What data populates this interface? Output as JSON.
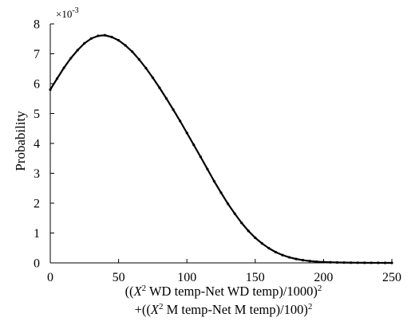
{
  "chart_data": {
    "type": "line",
    "ylabel": "Probability",
    "y_multiplier": {
      "base": "×10",
      "exponent": "-3"
    },
    "xlabel": {
      "line1": {
        "prefix": "((",
        "var": "X",
        "var_sup": "2",
        "middle": " WD temp-Net WD temp)/1000)",
        "end_sup": "2"
      },
      "line2": {
        "prefix": "+((",
        "var": "X",
        "var_sup": "2",
        "middle": " M temp-Net M temp)/100)",
        "end_sup": "2"
      }
    },
    "xlim": [
      0,
      250
    ],
    "ylim": [
      0,
      8
    ],
    "x_ticks": [
      "0",
      "50",
      "100",
      "150",
      "200",
      "250"
    ],
    "y_ticks": [
      "0",
      "1",
      "2",
      "3",
      "4",
      "5",
      "6",
      "7",
      "8"
    ],
    "grid": false,
    "series": [
      {
        "color": "#000000",
        "marker": "dot",
        "x": [
          0,
          5,
          10,
          15,
          20,
          25,
          30,
          35,
          40,
          45,
          50,
          55,
          60,
          65,
          70,
          75,
          80,
          85,
          90,
          95,
          100,
          105,
          110,
          115,
          120,
          125,
          130,
          135,
          140,
          145,
          150,
          155,
          160,
          165,
          170,
          175,
          180,
          185,
          190,
          195,
          200,
          205,
          210,
          215,
          220,
          225,
          230,
          235,
          240,
          245,
          250
        ],
        "y": [
          5.8,
          6.17,
          6.53,
          6.85,
          7.12,
          7.35,
          7.51,
          7.6,
          7.62,
          7.56,
          7.45,
          7.28,
          7.07,
          6.81,
          6.52,
          6.2,
          5.86,
          5.5,
          5.13,
          4.75,
          4.35,
          3.95,
          3.55,
          3.14,
          2.73,
          2.35,
          1.98,
          1.65,
          1.34,
          1.07,
          0.84,
          0.65,
          0.49,
          0.36,
          0.26,
          0.185,
          0.13,
          0.09,
          0.06,
          0.04,
          0.028,
          0.02,
          0.014,
          0.01,
          0.007,
          0.005,
          0.003,
          0.002,
          0.0012,
          0.0007,
          0.0004
        ]
      }
    ]
  }
}
